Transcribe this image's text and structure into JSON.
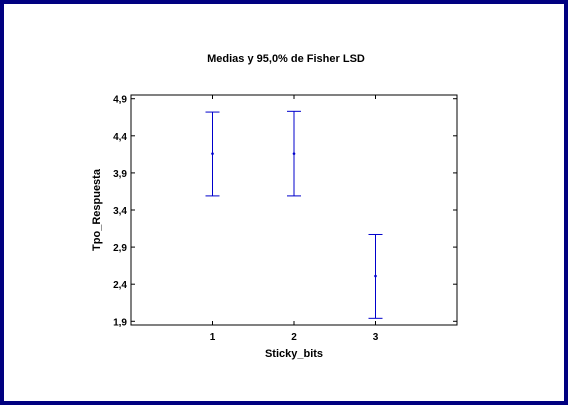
{
  "chart_data": {
    "type": "interval",
    "title": "Medias y 95,0% de Fisher LSD",
    "xlabel": "Sticky_bits",
    "ylabel": "Tpo_Respuesta",
    "categories": [
      "1",
      "2",
      "3"
    ],
    "xlim": [
      0,
      4
    ],
    "ylim": [
      1.85,
      4.95
    ],
    "yticks": [
      "1,9",
      "2,4",
      "2,9",
      "3,4",
      "3,9",
      "4,4",
      "4,9"
    ],
    "ytick_values": [
      1.9,
      2.4,
      2.9,
      3.4,
      3.9,
      4.4,
      4.9
    ],
    "series": [
      {
        "means": [
          4.16,
          4.16,
          2.51
        ],
        "lower": [
          3.59,
          3.59,
          1.94
        ],
        "upper": [
          4.72,
          4.73,
          3.07
        ]
      }
    ],
    "colors": {
      "interval": "#0000cc",
      "frame": "#000080",
      "axes": "#000000"
    }
  }
}
